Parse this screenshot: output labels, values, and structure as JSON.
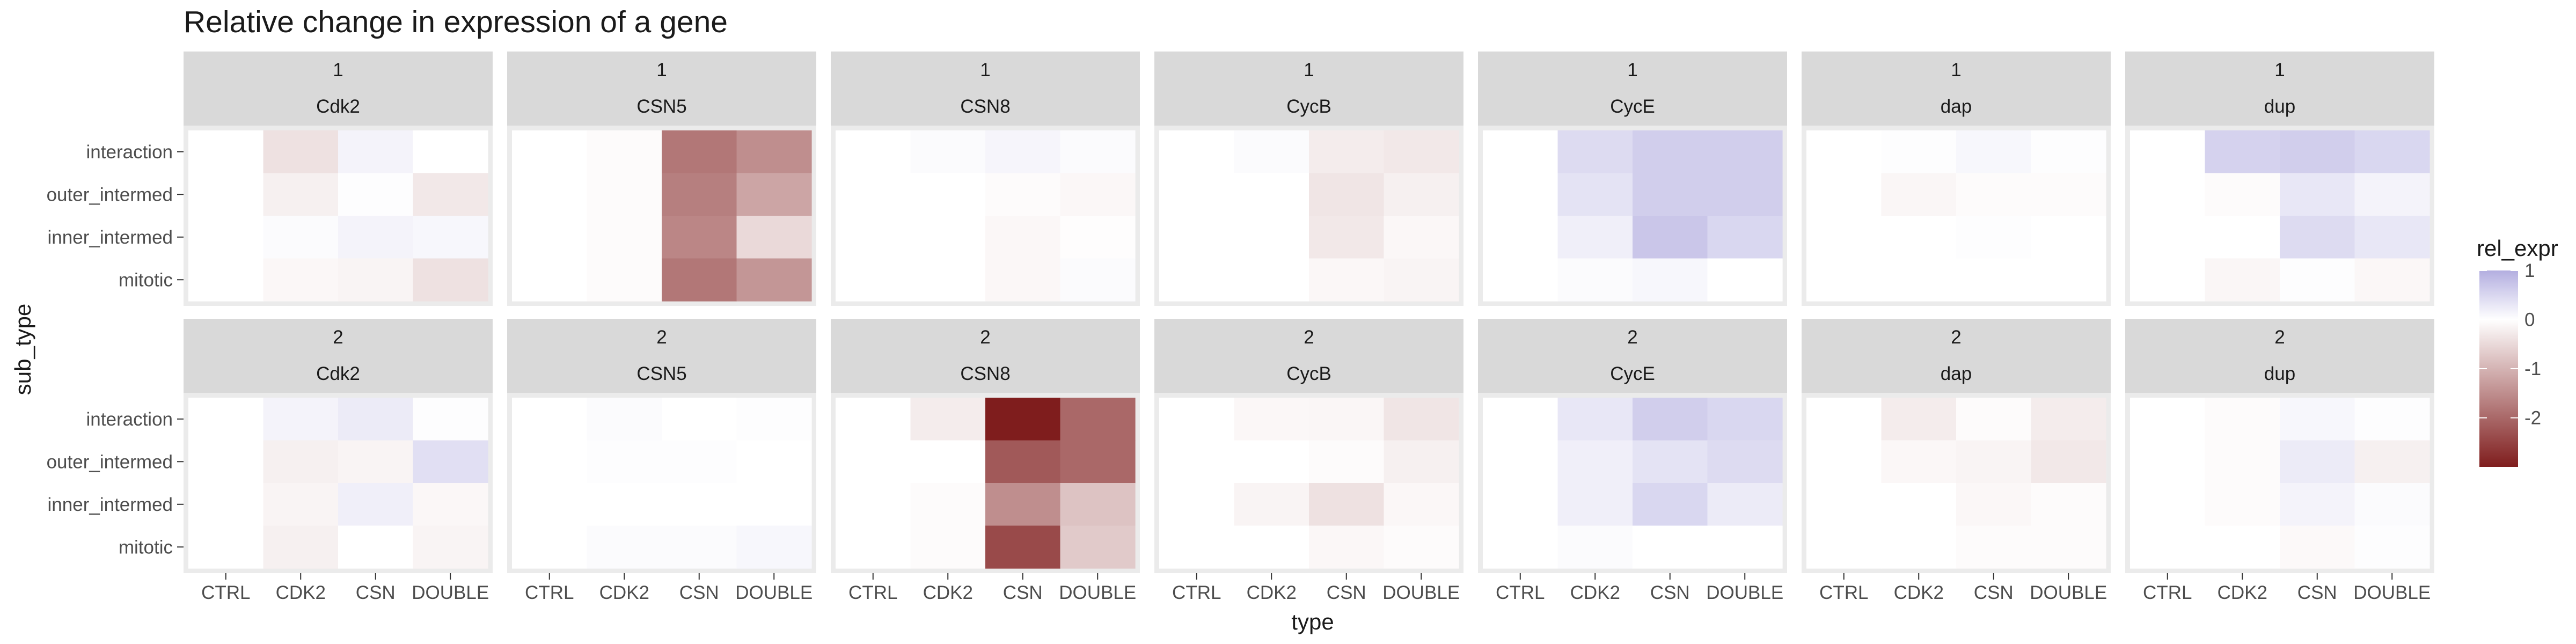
{
  "chart_data": {
    "type": "heatmap",
    "title": "Relative change in expression of a gene",
    "xlabel": "type",
    "ylabel": "sub_type",
    "x_categories": [
      "CTRL",
      "CDK2",
      "CSN",
      "DOUBLE"
    ],
    "y_categories": [
      "interaction",
      "outer_intermed",
      "inner_intermed",
      "mitotic"
    ],
    "facet_rows": [
      "1",
      "2"
    ],
    "facet_cols": [
      "Cdk2",
      "CSN5",
      "CSN8",
      "CycB",
      "CycE",
      "dap",
      "dup"
    ],
    "legend": {
      "title": "rel_expr",
      "ticks": [
        1,
        0,
        -1,
        -2
      ],
      "range": [
        -3,
        1
      ],
      "colors": {
        "low": "#7f1d1d",
        "mid": "#ffffff",
        "high": "#b3aee0"
      },
      "position": "right"
    },
    "cells": {
      "1": {
        "Cdk2": [
          [
            0,
            -0.4,
            0.15,
            0
          ],
          [
            0,
            -0.2,
            0.02,
            -0.3
          ],
          [
            0,
            0.05,
            0.15,
            0.1
          ],
          [
            0,
            -0.1,
            -0.15,
            -0.4
          ]
        ],
        "CSN5": [
          [
            0,
            -0.05,
            -1.8,
            -1.5
          ],
          [
            0,
            -0.05,
            -1.7,
            -1.2
          ],
          [
            0,
            -0.05,
            -1.6,
            -0.5
          ],
          [
            0,
            -0.05,
            -1.8,
            -1.4
          ]
        ],
        "CSN8": [
          [
            0,
            0.05,
            0.12,
            0.05
          ],
          [
            0,
            0,
            -0.05,
            -0.1
          ],
          [
            0,
            0,
            -0.1,
            -0.02
          ],
          [
            0,
            0,
            -0.1,
            0.05
          ]
        ],
        "CycB": [
          [
            0,
            0.05,
            -0.25,
            -0.3
          ],
          [
            0,
            0,
            -0.35,
            -0.2
          ],
          [
            0,
            0,
            -0.3,
            -0.1
          ],
          [
            0,
            0,
            -0.1,
            -0.15
          ]
        ],
        "CycE": [
          [
            0,
            0.45,
            0.6,
            0.6
          ],
          [
            0,
            0.35,
            0.6,
            0.6
          ],
          [
            0,
            0.2,
            0.7,
            0.5
          ],
          [
            0,
            0.05,
            0.1,
            0
          ]
        ],
        "dap": [
          [
            0,
            0.03,
            0.1,
            0.03
          ],
          [
            0,
            -0.12,
            -0.05,
            -0.05
          ],
          [
            0,
            0,
            0.02,
            0
          ],
          [
            0,
            0,
            0,
            0
          ]
        ],
        "dup": [
          [
            0,
            0.55,
            0.6,
            0.5
          ],
          [
            0,
            -0.05,
            0.3,
            0.15
          ],
          [
            0,
            0,
            0.45,
            0.3
          ],
          [
            0,
            -0.12,
            0.02,
            -0.1
          ]
        ]
      },
      "2": {
        "Cdk2": [
          [
            0,
            0.15,
            0.25,
            0.02
          ],
          [
            0,
            -0.2,
            -0.15,
            0.4
          ],
          [
            0,
            -0.15,
            0.2,
            -0.1
          ],
          [
            0,
            -0.2,
            0,
            -0.15
          ]
        ],
        "CSN5": [
          [
            0,
            0.05,
            0,
            0.02
          ],
          [
            0,
            0.02,
            0.02,
            0
          ],
          [
            0,
            0,
            0,
            0
          ],
          [
            0,
            0.05,
            0.05,
            0.1
          ]
        ],
        "CSN8": [
          [
            0,
            -0.25,
            -3,
            -2
          ],
          [
            0,
            0,
            -2.2,
            -2
          ],
          [
            0,
            -0.05,
            -1.5,
            -0.8
          ],
          [
            0,
            -0.05,
            -2.4,
            -0.7
          ]
        ],
        "CycB": [
          [
            0,
            -0.1,
            -0.12,
            -0.35
          ],
          [
            0,
            0,
            -0.05,
            -0.2
          ],
          [
            0,
            -0.15,
            -0.4,
            -0.1
          ],
          [
            0,
            0,
            -0.1,
            -0.05
          ]
        ],
        "CycE": [
          [
            0,
            0.3,
            0.6,
            0.5
          ],
          [
            0,
            0.2,
            0.35,
            0.45
          ],
          [
            0,
            0.2,
            0.5,
            0.25
          ],
          [
            0,
            0.05,
            0,
            0
          ]
        ],
        "dap": [
          [
            0,
            -0.25,
            -0.05,
            -0.25
          ],
          [
            0,
            -0.1,
            -0.15,
            -0.3
          ],
          [
            0,
            0,
            -0.1,
            -0.05
          ],
          [
            0,
            0,
            -0.05,
            -0.05
          ]
        ],
        "dup": [
          [
            0,
            -0.05,
            0.1,
            0.02
          ],
          [
            0,
            -0.05,
            0.25,
            -0.2
          ],
          [
            0,
            -0.05,
            0.15,
            0.05
          ],
          [
            0,
            0,
            -0.08,
            0.02
          ]
        ]
      }
    }
  }
}
